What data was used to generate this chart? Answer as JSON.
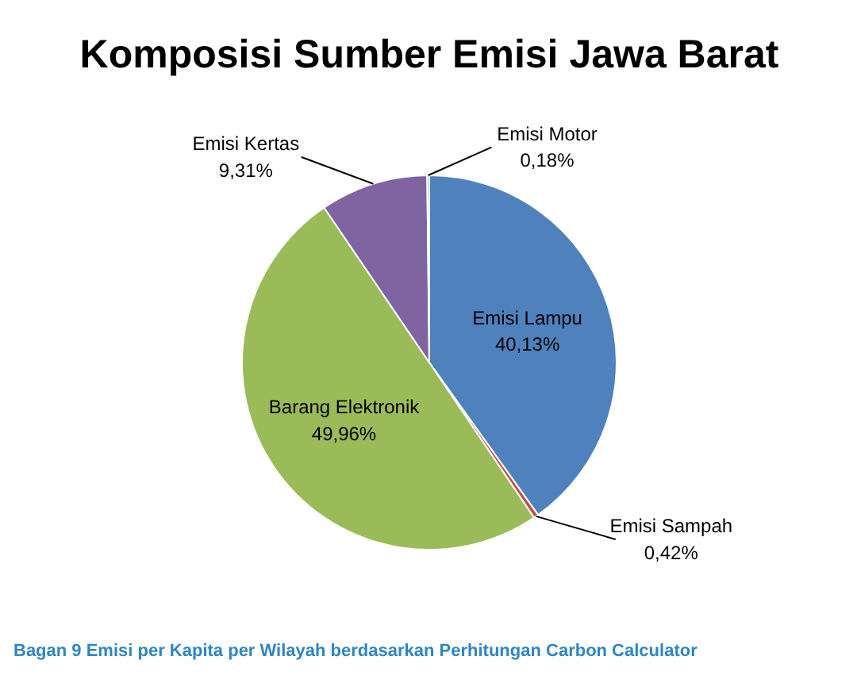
{
  "chart_data": {
    "type": "pie",
    "title": "Komposisi Sumber Emisi Jawa Barat",
    "categories": [
      "Emisi Lampu",
      "Emisi Sampah",
      "Barang Elektronik",
      "Emisi Kertas",
      "Emisi Motor"
    ],
    "values": [
      40.13,
      0.42,
      49.96,
      9.31,
      0.18
    ],
    "value_labels": [
      "40,13%",
      "0,42%",
      "49,96%",
      "9,31%",
      "0,18%"
    ],
    "colors": [
      "#4f81bd",
      "#c0504d",
      "#9bbb59",
      "#8064a2",
      "#4bacc6"
    ],
    "annotations": [
      "Bagan 9 Emisi per Kapita per Wilayah berdasarkan Perhitungan Carbon Calculator"
    ]
  }
}
